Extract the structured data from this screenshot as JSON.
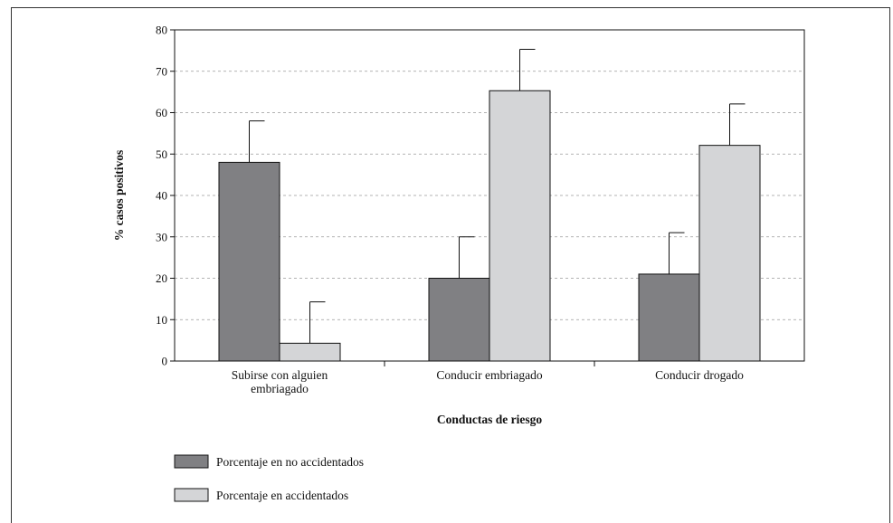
{
  "chart_data": {
    "type": "bar",
    "xlabel": "Conductas de riesgo",
    "ylabel": "% casos positivos",
    "ylim": [
      0,
      80
    ],
    "yticks": [
      0,
      10,
      20,
      30,
      40,
      50,
      60,
      70,
      80
    ],
    "grid": "horizontal-dashed",
    "legend_position": "bottom-left",
    "categories": [
      [
        "Subirse con alguien",
        "embriagado"
      ],
      [
        "Conducir embriagado"
      ],
      [
        "Conducir drogado"
      ]
    ],
    "series": [
      {
        "name": "Porcentaje en no accidentados",
        "color": "#808083",
        "values": [
          48,
          20,
          21
        ],
        "errors": [
          10,
          10,
          10
        ]
      },
      {
        "name": "Porcentaje en accidentados",
        "color": "#d4d5d7",
        "values": [
          4.3,
          65.3,
          52.1
        ],
        "errors": [
          10,
          10,
          10
        ]
      }
    ]
  }
}
